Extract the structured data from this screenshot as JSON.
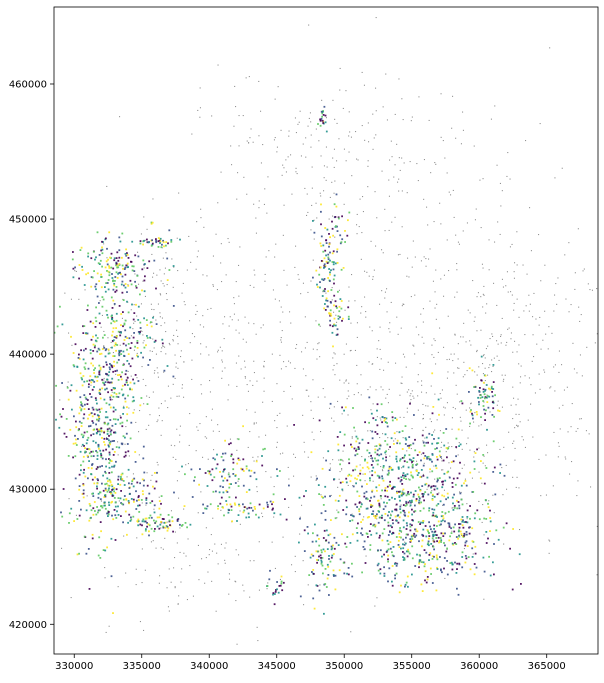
{
  "chart_data": {
    "type": "scatter",
    "title": "",
    "xlabel": "",
    "ylabel": "",
    "xlim": [
      328500,
      368800
    ],
    "ylim": [
      417800,
      465700
    ],
    "xticks": [
      330000,
      335000,
      340000,
      345000,
      350000,
      355000,
      360000,
      365000
    ],
    "xtick_labels": [
      "330000",
      "335000",
      "340000",
      "345000",
      "350000",
      "355000",
      "360000",
      "365000"
    ],
    "yticks": [
      420000,
      430000,
      440000,
      450000,
      460000
    ],
    "ytick_labels": [
      "420000",
      "430000",
      "440000",
      "450000",
      "460000"
    ],
    "grid": false,
    "legend": "none",
    "colors": {
      "background_points": "#808080",
      "viridis_dark": "#440154",
      "viridis_blue": "#3b528b",
      "viridis_teal": "#21918c",
      "viridis_green": "#5ec962",
      "viridis_yellow": "#fde725"
    },
    "series": [
      {
        "role": "background-points",
        "color": "#808080",
        "regions": [
          {
            "cx": 343000,
            "cy": 438000,
            "sx": 9000,
            "sy": 7000,
            "n": 420
          },
          {
            "cx": 354000,
            "cy": 445000,
            "sx": 8000,
            "sy": 7000,
            "n": 340
          },
          {
            "cx": 358000,
            "cy": 434000,
            "sx": 6000,
            "sy": 4500,
            "n": 260
          },
          {
            "cx": 340000,
            "cy": 424000,
            "sx": 3500,
            "sy": 2000,
            "n": 90
          },
          {
            "cx": 362000,
            "cy": 441000,
            "sx": 3500,
            "sy": 5000,
            "n": 150
          },
          {
            "cx": 349000,
            "cy": 455000,
            "sx": 5000,
            "sy": 3000,
            "n": 140
          },
          {
            "cx": 336000,
            "cy": 441000,
            "sx": 2000,
            "sy": 4000,
            "n": 150
          }
        ]
      },
      {
        "role": "colored-clusters",
        "colors": [
          "#440154",
          "#3b528b",
          "#21918c",
          "#5ec962",
          "#fde725"
        ],
        "clusters": [
          {
            "cx": 332000,
            "cy": 435000,
            "sx": 1300,
            "sy": 4200,
            "n": 520
          },
          {
            "cx": 333000,
            "cy": 446500,
            "sx": 1400,
            "sy": 1200,
            "n": 170
          },
          {
            "cx": 333500,
            "cy": 441000,
            "sx": 1600,
            "sy": 1700,
            "n": 150
          },
          {
            "cx": 333200,
            "cy": 429500,
            "sx": 1500,
            "sy": 1000,
            "n": 140
          },
          {
            "cx": 336300,
            "cy": 427600,
            "sx": 1000,
            "sy": 400,
            "n": 70
          },
          {
            "cx": 336000,
            "cy": 448300,
            "sx": 700,
            "sy": 250,
            "n": 35
          },
          {
            "cx": 348600,
            "cy": 445700,
            "sx": 500,
            "sy": 1500,
            "n": 70
          },
          {
            "cx": 349000,
            "cy": 448500,
            "sx": 600,
            "sy": 1500,
            "n": 50
          },
          {
            "cx": 349500,
            "cy": 442700,
            "sx": 500,
            "sy": 600,
            "n": 30
          },
          {
            "cx": 348400,
            "cy": 457600,
            "sx": 200,
            "sy": 500,
            "n": 20
          },
          {
            "cx": 354000,
            "cy": 430500,
            "sx": 3000,
            "sy": 2300,
            "n": 620
          },
          {
            "cx": 356000,
            "cy": 426000,
            "sx": 2600,
            "sy": 1700,
            "n": 320
          },
          {
            "cx": 348500,
            "cy": 424800,
            "sx": 1000,
            "sy": 1500,
            "n": 90
          },
          {
            "cx": 360200,
            "cy": 436900,
            "sx": 600,
            "sy": 900,
            "n": 70
          },
          {
            "cx": 341500,
            "cy": 431500,
            "sx": 1500,
            "sy": 1000,
            "n": 90
          },
          {
            "cx": 342500,
            "cy": 428700,
            "sx": 1500,
            "sy": 400,
            "n": 60
          },
          {
            "cx": 345000,
            "cy": 422800,
            "sx": 400,
            "sy": 500,
            "n": 20
          },
          {
            "cx": 358700,
            "cy": 427000,
            "sx": 500,
            "sy": 800,
            "n": 30
          },
          {
            "cx": 352700,
            "cy": 435200,
            "sx": 400,
            "sy": 200,
            "n": 15
          }
        ]
      }
    ]
  }
}
